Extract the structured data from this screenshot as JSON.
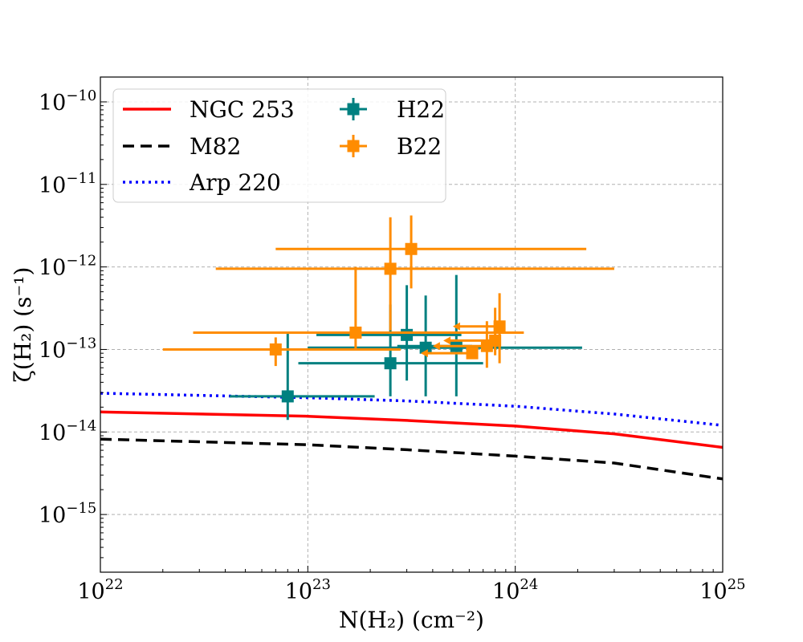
{
  "chart_data": {
    "type": "scatter",
    "title": "",
    "xlabel": "N(H₂) (cm⁻²)",
    "ylabel": "ζ(H₂) (s⁻¹)",
    "x_scale": "log",
    "y_scale": "log",
    "xlim": [
      1e+22,
      1e+25
    ],
    "ylim": [
      2e-16,
      2e-10
    ],
    "grid": true,
    "legend_position": "upper-left",
    "x_ticks": [
      {
        "base": "10",
        "exp": "22",
        "value": 1e+22
      },
      {
        "base": "10",
        "exp": "23",
        "value": 1e+23
      },
      {
        "base": "10",
        "exp": "24",
        "value": 1e+24
      },
      {
        "base": "10",
        "exp": "25",
        "value": 1e+25
      }
    ],
    "y_ticks": [
      {
        "base": "10",
        "exp": "−10",
        "value": 1e-10
      },
      {
        "base": "10",
        "exp": "−11",
        "value": 1e-11
      },
      {
        "base": "10",
        "exp": "−12",
        "value": 1e-12
      },
      {
        "base": "10",
        "exp": "−13",
        "value": 1e-13
      },
      {
        "base": "10",
        "exp": "−14",
        "value": 1e-14
      },
      {
        "base": "10",
        "exp": "−15",
        "value": 1e-15
      }
    ],
    "lines": [
      {
        "name": "NGC 253",
        "color": "#ff0000",
        "style": "solid",
        "points": [
          [
            1e+22,
            1.75e-14
          ],
          [
            1e+23,
            1.55e-14
          ],
          [
            3e+23,
            1.38e-14
          ],
          [
            1e+24,
            1.18e-14
          ],
          [
            3e+24,
            9.5e-15
          ],
          [
            1e+25,
            6.5e-15
          ]
        ]
      },
      {
        "name": "M82",
        "color": "#000000",
        "style": "dashed",
        "points": [
          [
            1e+22,
            8.2e-15
          ],
          [
            1e+23,
            7e-15
          ],
          [
            3e+23,
            6.1e-15
          ],
          [
            1e+24,
            5.1e-15
          ],
          [
            3e+24,
            4.2e-15
          ],
          [
            1e+25,
            2.7e-15
          ]
        ]
      },
      {
        "name": "Arp 220",
        "color": "#0000ff",
        "style": "dotted",
        "points": [
          [
            1e+22,
            2.95e-14
          ],
          [
            1e+23,
            2.6e-14
          ],
          [
            3e+23,
            2.38e-14
          ],
          [
            1e+24,
            2.05e-14
          ],
          [
            3e+24,
            1.65e-14
          ],
          [
            1e+25,
            1.2e-14
          ]
        ]
      }
    ],
    "series": [
      {
        "name": "H22",
        "color": "#008080",
        "points": [
          {
            "x": 8e+22,
            "y": 2.7e-14,
            "xlo": 4.2e+22,
            "xhi": 2.1e+23,
            "ylo": 1.4e-14,
            "yhi": 1.6e-13
          },
          {
            "x": 2.5e+23,
            "y": 6.8e-14,
            "xlo": 9e+22,
            "xhi": 7e+23,
            "ylo": 2.7e-14,
            "yhi": 3.5e-13
          },
          {
            "x": 3e+23,
            "y": 1.5e-13,
            "xlo": 1.1e+23,
            "xhi": 5.5e+23,
            "ylo": 4.2e-14,
            "yhi": 6e-13
          },
          {
            "x": 3.7e+23,
            "y": 1.05e-13,
            "xlo": 1e+23,
            "xhi": 2.1e+24,
            "ylo": 2.7e-14,
            "yhi": 4.5e-13
          },
          {
            "x": 5.2e+23,
            "y": 1.1e-13,
            "xlo": 2.7e+23,
            "xhi": 6.2e+23,
            "ylo": 2.7e-14,
            "yhi": 8e-13
          }
        ]
      },
      {
        "name": "B22",
        "color": "#ff8c00",
        "points": [
          {
            "x": 7e+22,
            "y": 1e-13,
            "xlo": 2e+22,
            "xhi": 2.8e+23,
            "ylo": 6.3e-14,
            "yhi": 1.4e-13
          },
          {
            "x": 1.7e+23,
            "y": 1.6e-13,
            "xlo": 2.8e+22,
            "xhi": 1.1e+24,
            "ylo": 1e-13,
            "yhi": 1e-12
          },
          {
            "x": 2.5e+23,
            "y": 9.5e-13,
            "xlo": 3.6e+22,
            "xhi": 3e+24,
            "ylo": 1.7e-13,
            "yhi": 4e-12
          },
          {
            "x": 3.15e+23,
            "y": 1.65e-12,
            "xlo": 7e+22,
            "xhi": 2.2e+24,
            "ylo": 5.5e-13,
            "yhi": 4.2e-12
          },
          {
            "x": 6.2e+23,
            "y": 9e-14,
            "upper_limit_x": true,
            "arrow_to": 3.5e+23
          },
          {
            "x": 7.3e+23,
            "y": 1.1e-13,
            "upper_limit_x": true,
            "arrow_to": 4e+23,
            "ylo": 6e-14,
            "yhi": 2.2e-13
          },
          {
            "x": 8e+23,
            "y": 1.28e-13,
            "upper_limit_x": true,
            "arrow_to": 4.5e+23,
            "ylo": 8.5e-14,
            "yhi": 3.2e-13
          },
          {
            "x": 8.4e+23,
            "y": 1.9e-13,
            "upper_limit_x": true,
            "arrow_to": 5e+23,
            "ylo": 6.8e-14,
            "yhi": 4.8e-13
          }
        ]
      }
    ]
  }
}
